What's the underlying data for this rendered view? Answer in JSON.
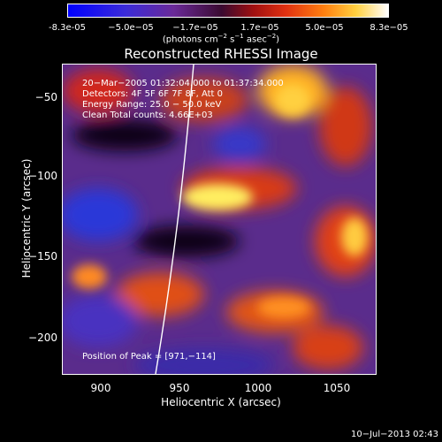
{
  "colorbar": {
    "ticks": [
      "-8.3e-05",
      "−5.0e−05",
      "−1.7e−05",
      "1.7e−05",
      "5.0e−05",
      "8.3e−05"
    ],
    "units_prefix": "(photons cm",
    "units_sup1": "−2",
    "units_mid": " s",
    "units_sup2": "−1",
    "units_mid2": " asec",
    "units_sup3": "−2",
    "units_suffix": ")"
  },
  "title": "Reconstructed RHESSI Image",
  "annotations": {
    "time_range": "20−Mar−2005 01:32:04.000 to 01:37:34.000",
    "detectors": "Detectors: 4F 5F 6F 7F 8F, Att 0",
    "energy": "Energy Range: 25.0 − 50.0 keV",
    "clean": "Clean     Total counts: 4.66E+03",
    "peak": "Position of Peak = [971,−114]"
  },
  "axes": {
    "xlabel": "Heliocentric X (arcsec)",
    "ylabel": "Heliocentric Y (arcsec)",
    "xticks": [
      "900",
      "950",
      "1000",
      "1050"
    ],
    "yticks": [
      "−50",
      "−100",
      "−150",
      "−200"
    ]
  },
  "footer": "10−Jul−2013 02:43"
}
